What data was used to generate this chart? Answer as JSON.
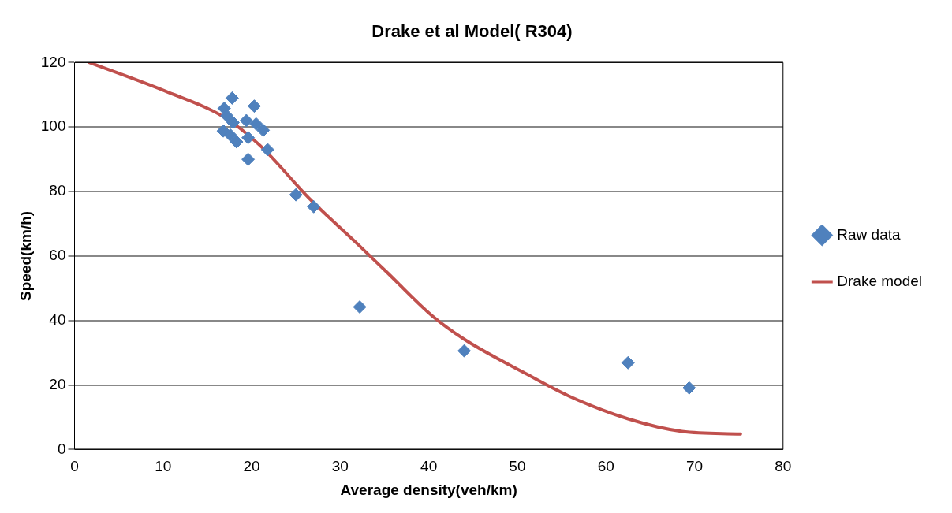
{
  "chart_data": {
    "type": "scatter",
    "title": "Drake et al Model( R304)",
    "xlabel": "Average density(veh/km)",
    "ylabel": "Speed(km/h)",
    "xlim": [
      0,
      80
    ],
    "xticks": [
      0,
      10,
      20,
      30,
      40,
      50,
      60,
      70,
      80
    ],
    "ylim": [
      0,
      120
    ],
    "yticks": [
      0,
      20,
      40,
      60,
      80,
      100,
      120
    ],
    "grid": "y",
    "legend": "right",
    "series": [
      {
        "name": "Raw data",
        "marker": "diamond",
        "color": "#4f81bd",
        "x": [
          17.8,
          20.3,
          16.9,
          17.2,
          19.4,
          17.9,
          21.3,
          16.8,
          20.5,
          17.6,
          19.6,
          18.3,
          19.6,
          21.8,
          25.0,
          27.0,
          32.2,
          44.0,
          62.5,
          69.4
        ],
        "values": [
          109,
          106.5,
          105.8,
          103.5,
          102,
          101.4,
          99,
          98.8,
          101,
          97.5,
          96.7,
          95.4,
          90,
          93,
          79,
          75.3,
          44.2,
          30.6,
          26.9,
          19.1
        ]
      },
      {
        "name": "Drake model",
        "type": "line",
        "marker": "none",
        "color": "#c0504d",
        "x": [
          1.7,
          10.2,
          16.8,
          20.9,
          26.6,
          31.7,
          35.3,
          40.4,
          44,
          50.7,
          55.8,
          62.5,
          68.6,
          75.2
        ],
        "values": [
          120,
          111.2,
          103.2,
          94.4,
          77.6,
          64.4,
          54.9,
          41.4,
          34.2,
          23.9,
          16.6,
          9.5,
          5.6,
          4.8
        ]
      }
    ]
  }
}
